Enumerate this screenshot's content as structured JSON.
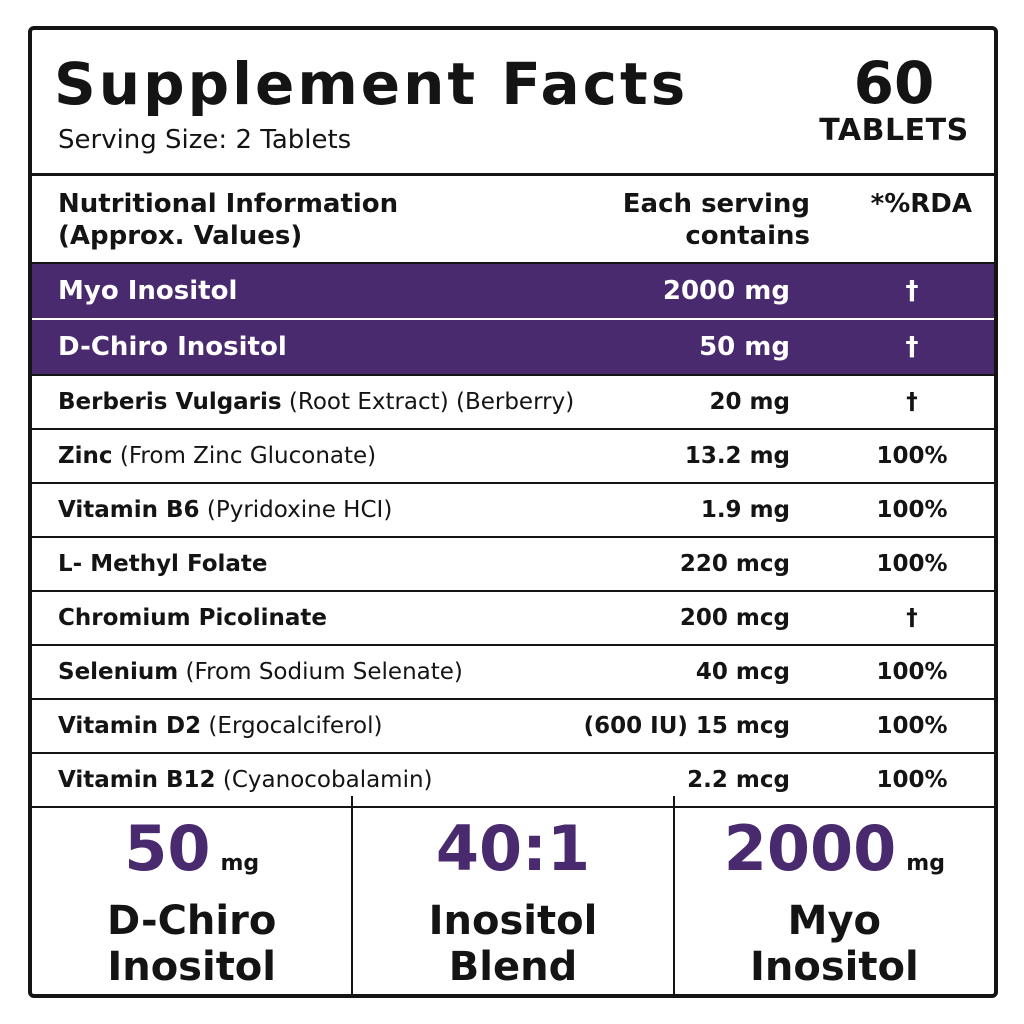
{
  "header": {
    "title": "Supplement Facts",
    "serving": "Serving Size: 2 Tablets",
    "count_number": "60",
    "count_unit": "TABLETS"
  },
  "columns": {
    "nutri_line1": "Nutritional Information",
    "nutri_line2": "(Approx. Values)",
    "each_line1": "Each serving",
    "each_line2": "contains",
    "rda": "*%RDA"
  },
  "rows": [
    {
      "name": "Myo Inositol",
      "detail": "",
      "amount": "2000 mg",
      "rda": "†",
      "highlight": true
    },
    {
      "name": "D-Chiro Inositol",
      "detail": "",
      "amount": "50 mg",
      "rda": "†",
      "highlight": true
    },
    {
      "name": "Berberis Vulgaris",
      "detail": " (Root Extract) (Berberry)",
      "amount": "20 mg",
      "rda": "†"
    },
    {
      "name": "Zinc",
      "detail": " (From Zinc Gluconate)",
      "amount": "13.2 mg",
      "rda": "100%"
    },
    {
      "name": "Vitamin B6",
      "detail": " (Pyridoxine HCI)",
      "amount": "1.9 mg",
      "rda": "100%"
    },
    {
      "name": " L- Methyl Folate",
      "detail": "",
      "amount": "220 mcg",
      "rda": "100%"
    },
    {
      "name": "Chromium Picolinate",
      "detail": "",
      "amount": "200 mcg",
      "rda": "†"
    },
    {
      "name": "Selenium",
      "detail": " (From Sodium Selenate)",
      "amount": "40 mcg",
      "rda": "100%"
    },
    {
      "name": "Vitamin D2",
      "detail": " (Ergocalciferol)",
      "amount": "(600 IU) 15 mcg",
      "rda": "100%"
    },
    {
      "name": "Vitamin B12",
      "detail": " (Cyanocobalamin)",
      "amount": "2.2 mcg",
      "rda": "100%"
    }
  ],
  "footer": [
    {
      "value": "50",
      "unit": "mg",
      "line1": "D-Chiro",
      "line2": "Inositol"
    },
    {
      "value": "40:1",
      "unit": "",
      "line1": "Inositol",
      "line2": "Blend"
    },
    {
      "value": "2000",
      "unit": "mg",
      "line1": "Myo",
      "line2": "Inositol"
    }
  ],
  "colors": {
    "accent": "#4a2a6e",
    "text": "#141414",
    "background": "#ffffff"
  }
}
